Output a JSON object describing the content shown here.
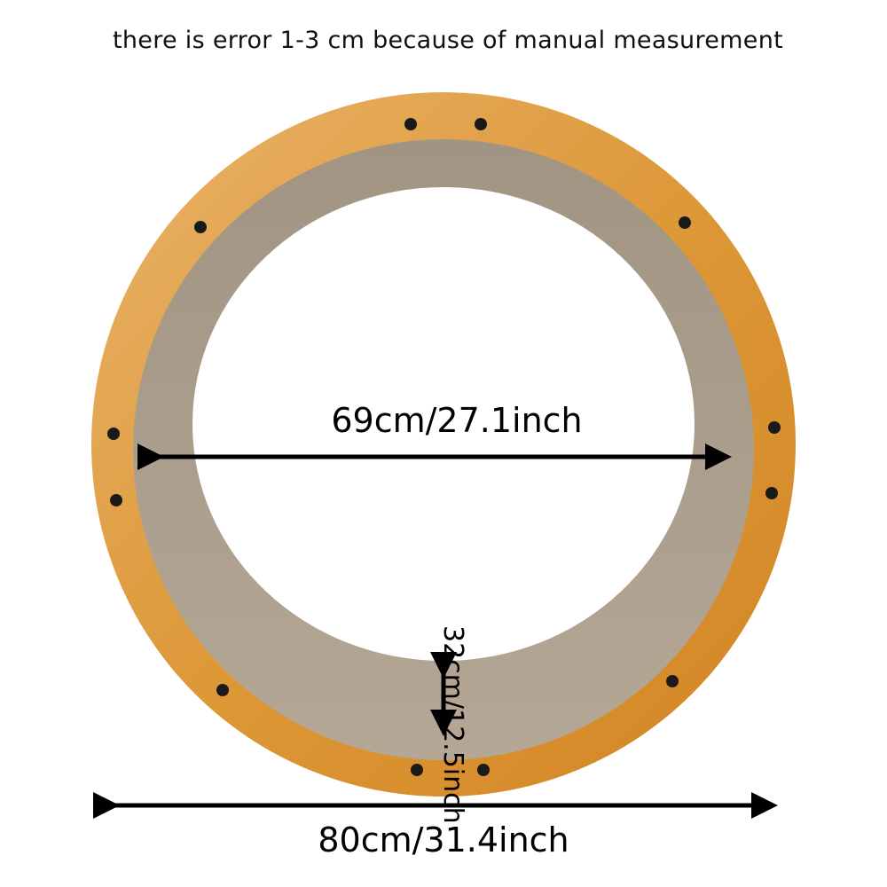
{
  "note": "there is error 1-3 cm because of manual measurement",
  "dimensions": {
    "inner_diameter": "69cm/27.1inch",
    "outer_diameter": "80cm/31.4inch",
    "depth": "32cm/12.5inch"
  },
  "colors": {
    "wood": "#d98f2e",
    "wood_light": "#e8b063",
    "cardboard": "#b3a493",
    "cardboard_dark": "#9c8c7a",
    "arrow": "#000000"
  }
}
